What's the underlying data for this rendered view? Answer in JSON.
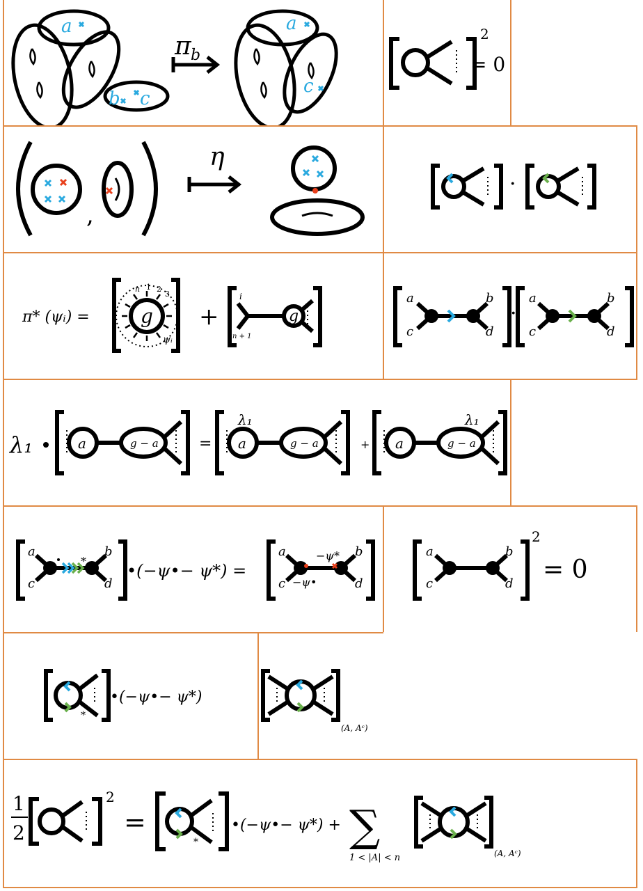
{
  "colors": {
    "border": "#e08a44",
    "blue": "#29a9df",
    "red": "#e8401c",
    "green": "#6ab04c",
    "ink": "#000000"
  },
  "row1": {
    "left": {
      "map_label": "π",
      "map_sub": "b",
      "marks_before": [
        "a",
        "b",
        "c"
      ],
      "marks_after": [
        "a",
        "c"
      ]
    },
    "right": {
      "exponent": "2",
      "equals": "= 0"
    }
  },
  "row2": {
    "left": {
      "map_label": "η",
      "comma": ","
    }
  },
  "row3": {
    "left": {
      "lhs": "π* (ψᵢ) =",
      "genus": "g",
      "legs": [
        "n",
        "1",
        "2",
        "3"
      ],
      "psi": "ψᵢ",
      "plus": "+",
      "leg_i": "i",
      "leg_n1": "n + 1"
    },
    "right": {
      "labels": [
        "a",
        "b",
        "c",
        "d"
      ],
      "dot": "·"
    }
  },
  "row4": {
    "lambda": "λ₁",
    "a": "a",
    "g_minus_a": "g − a",
    "equals": "=",
    "plus": "+",
    "lambda_small": "λ₁"
  },
  "row5": {
    "left": {
      "labels": [
        "a",
        "b",
        "c",
        "d"
      ],
      "star": "*",
      "factor": "•(−ψ•− ψ*) =",
      "psi_star": "−ψ*",
      "psi_dot": "−ψ•"
    },
    "right": {
      "labels": [
        "a",
        "b",
        "c",
        "d"
      ],
      "exponent": "2",
      "equals": "= 0"
    }
  },
  "row6": {
    "left": {
      "star": "*",
      "factor": "•(−ψ•− ψ*)"
    },
    "mid": {
      "subscript": "(A, Aᶜ)"
    }
  },
  "row7": {
    "frac_num": "1",
    "frac_den": "2",
    "exponent": "2",
    "equals": "=",
    "star": "*",
    "factor": "•(−ψ•− ψ*) +",
    "sigma": "∑",
    "sum_range": "1 < |A| < n",
    "subscript": "(A, Aᶜ)"
  }
}
